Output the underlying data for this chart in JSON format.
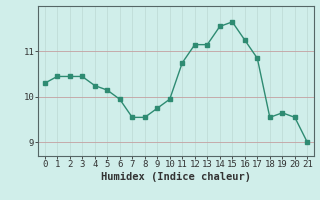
{
  "x": [
    0,
    1,
    2,
    3,
    4,
    5,
    6,
    7,
    8,
    9,
    10,
    11,
    12,
    13,
    14,
    15,
    16,
    17,
    18,
    19,
    20,
    21
  ],
  "y": [
    10.3,
    10.45,
    10.45,
    10.45,
    10.25,
    10.15,
    9.95,
    9.55,
    9.55,
    9.75,
    9.95,
    10.75,
    11.15,
    11.15,
    11.55,
    11.65,
    11.25,
    10.85,
    9.55,
    9.65,
    9.55,
    9.0
  ],
  "xlabel": "Humidex (Indice chaleur)",
  "ylabel": "",
  "line_color": "#2e8b72",
  "marker_color": "#2e8b72",
  "bg_color": "#d0eeea",
  "grid_color_v": "#c0ddd8",
  "grid_color_h": "#c4a0a0",
  "axis_color": "#556666",
  "xlim": [
    -0.5,
    21.5
  ],
  "ylim": [
    8.7,
    12.0
  ],
  "yticks": [
    9,
    10,
    11
  ],
  "xticks": [
    0,
    1,
    2,
    3,
    4,
    5,
    6,
    7,
    8,
    9,
    10,
    11,
    12,
    13,
    14,
    15,
    16,
    17,
    18,
    19,
    20,
    21
  ],
  "label_fontsize": 7.5,
  "tick_fontsize": 6.5
}
